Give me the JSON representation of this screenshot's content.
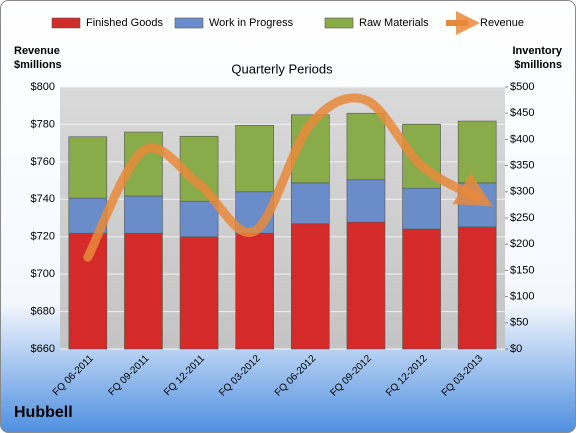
{
  "chart_data": {
    "type": "stacked_bar_line",
    "title": "Quarterly Periods",
    "brand": "Hubbell",
    "y_label": [
      "Revenue",
      "$millions"
    ],
    "y2_label": [
      "Inventory",
      "$millions"
    ],
    "categories": [
      "FQ 06-2011",
      "FQ 09-2011",
      "FQ 12-2011",
      "FQ 03-2012",
      "FQ 06-2012",
      "FQ 09-2012",
      "FQ 12-2012",
      "FQ 03-2013"
    ],
    "series": [
      {
        "name": "Finished Goods",
        "color": "#d42a2a",
        "axis": "y2",
        "values": [
          221,
          221,
          214,
          221,
          239,
          242,
          229,
          233
        ]
      },
      {
        "name": "Work in Progress",
        "color": "#6a8cc8",
        "axis": "y2",
        "values": [
          67,
          71,
          68,
          79,
          78,
          81,
          78,
          84
        ]
      },
      {
        "name": "Raw Materials",
        "color": "#8aab4a",
        "axis": "y2",
        "values": [
          117,
          122,
          124,
          127,
          130,
          127,
          122,
          118
        ]
      },
      {
        "name": "Revenue",
        "color": "#e8893a",
        "axis": "y",
        "values": [
          709,
          766,
          748,
          723,
          780,
          793,
          758,
          741
        ]
      }
    ],
    "ylim": [
      660,
      800
    ],
    "yticks": [
      {
        "value": 660,
        "label": "$660"
      },
      {
        "value": 680,
        "label": "$680"
      },
      {
        "value": 700,
        "label": "$700"
      },
      {
        "value": 720,
        "label": "$720"
      },
      {
        "value": 740,
        "label": "$740"
      },
      {
        "value": 760,
        "label": "$760"
      },
      {
        "value": 780,
        "label": "$780"
      },
      {
        "value": 800,
        "label": "$800"
      }
    ],
    "y2lim": [
      0,
      500
    ],
    "y2ticks": [
      {
        "value": 0,
        "label": "$0"
      },
      {
        "value": 50,
        "label": "$50"
      },
      {
        "value": 100,
        "label": "$100"
      },
      {
        "value": 150,
        "label": "$150"
      },
      {
        "value": 200,
        "label": "$200"
      },
      {
        "value": 250,
        "label": "$250"
      },
      {
        "value": 300,
        "label": "$300"
      },
      {
        "value": 350,
        "label": "$350"
      },
      {
        "value": 400,
        "label": "$400"
      },
      {
        "value": 450,
        "label": "$450"
      },
      {
        "value": 500,
        "label": "$500"
      }
    ],
    "grid": true,
    "legend": "top"
  }
}
